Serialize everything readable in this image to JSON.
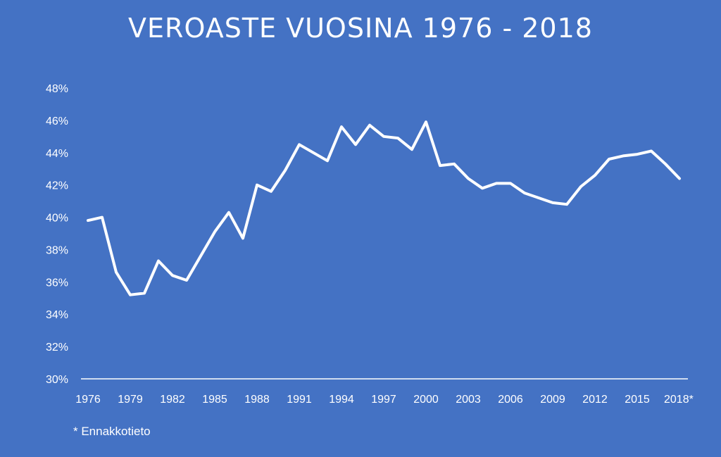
{
  "chart_data": {
    "type": "line",
    "title": "VEROASTE VUOSINA 1976 - 2018",
    "xlabel": "",
    "ylabel": "",
    "x": [
      "1976",
      "1977",
      "1978",
      "1979",
      "1980",
      "1981",
      "1982",
      "1983",
      "1984",
      "1985",
      "1986",
      "1987",
      "1988",
      "1989",
      "1990",
      "1991",
      "1992",
      "1993",
      "1994",
      "1995",
      "1996",
      "1997",
      "1998",
      "1999",
      "2000",
      "2001",
      "2002",
      "2003",
      "2004",
      "2005",
      "2006",
      "2007",
      "2008",
      "2009",
      "2010",
      "2011",
      "2012",
      "2013",
      "2014",
      "2015",
      "2016",
      "2017",
      "2018"
    ],
    "x_tick_labels": [
      "1976",
      "1979",
      "1982",
      "1985",
      "1988",
      "1991",
      "1994",
      "1997",
      "2000",
      "2003",
      "2006",
      "2009",
      "2012",
      "2015",
      "2018*"
    ],
    "series": [
      {
        "values": [
          39.8,
          40.0,
          36.6,
          35.2,
          35.3,
          37.3,
          36.4,
          36.1,
          37.6,
          39.1,
          40.3,
          38.7,
          42.0,
          41.6,
          42.9,
          44.5,
          44.0,
          43.5,
          45.6,
          44.5,
          45.7,
          45.0,
          44.9,
          44.2,
          45.9,
          43.2,
          43.3,
          42.4,
          41.8,
          42.1,
          42.1,
          41.5,
          41.2,
          40.9,
          40.8,
          41.9,
          42.6,
          43.6,
          43.8,
          43.9,
          44.1,
          43.3,
          42.4
        ]
      }
    ],
    "y_ticks": [
      "30%",
      "32%",
      "34%",
      "36%",
      "38%",
      "40%",
      "42%",
      "44%",
      "46%",
      "48%"
    ],
    "ylim": [
      30,
      48
    ],
    "grid": false,
    "drop_lines": true,
    "colors": {
      "background": "#4472c4",
      "line": "#ffffff"
    }
  },
  "footnote": "* Ennakkotieto"
}
